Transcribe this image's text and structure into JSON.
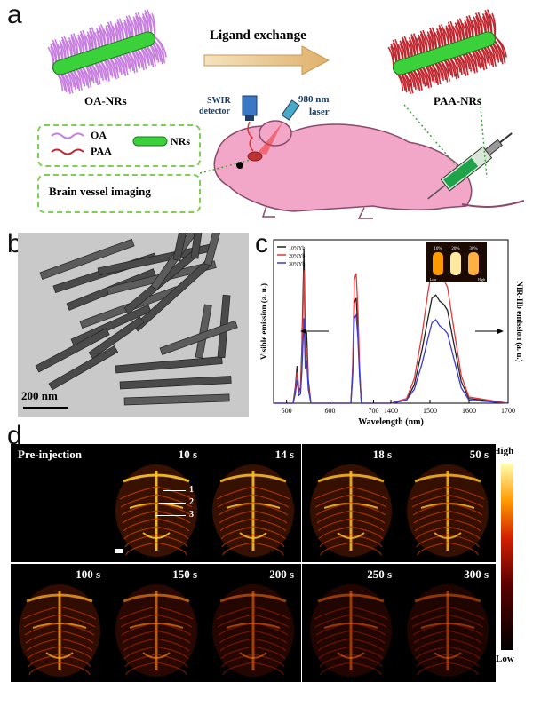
{
  "panel_a": {
    "letter": "a",
    "ligand_exchange": "Ligand exchange",
    "oa_nrs": "OA-NRs",
    "paa_nrs": "PAA-NRs",
    "swir_detector_line1": "SWIR",
    "swir_detector_line2": "detector",
    "laser_line1": "980 nm",
    "laser_line2": "laser",
    "legend_oa": "OA",
    "legend_paa": "PAA",
    "legend_nrs": "NRs",
    "brain_vessel": "Brain vessel imaging",
    "colors": {
      "oa": "#c77de0",
      "paa": "#c0262e",
      "nrs": "#3bd13b",
      "mouse": "#f2a6c8"
    }
  },
  "panel_b": {
    "letter": "b",
    "scale": "200 nm"
  },
  "panel_c": {
    "letter": "c",
    "ylabel_left": "Visible emission (a. u.)",
    "ylabel_right": "NIR-IIb emission (a. u.)",
    "xlabel": "Wavelength (nm)",
    "inset_labels": [
      "10%",
      "20%",
      "30%"
    ],
    "inset_low": "Low",
    "inset_high": "High"
  },
  "chart_data": {
    "type": "line",
    "xlabel": "Wavelength (nm)",
    "ylabel": "Visible emission (a. u.)",
    "ylabel_right": "NIR-IIb emission (a. u.)",
    "x_ticks_left": [
      "500",
      "600",
      "700"
    ],
    "x_ticks_right": [
      "1400",
      "1500",
      "1600",
      "1700"
    ],
    "xlim_left": [
      470,
      740
    ],
    "xlim_right": [
      1400,
      1700
    ],
    "ylim": [
      0,
      1
    ],
    "legend": "top-left",
    "series": [
      {
        "name": "10%Yb",
        "color": "#222222",
        "vis_x": [
          470,
          515,
          520,
          524,
          528,
          532,
          535,
          540,
          543,
          546,
          550,
          556,
          600,
          648,
          652,
          656,
          660,
          664,
          668,
          672,
          740
        ],
        "vis_y": [
          0.0,
          0.0,
          0.1,
          0.24,
          0.08,
          0.1,
          0.35,
          1.0,
          0.4,
          0.46,
          0.15,
          0.0,
          0.0,
          0.0,
          0.2,
          0.65,
          0.68,
          0.5,
          0.2,
          0.0,
          0.0
        ],
        "nir_x": [
          1400,
          1440,
          1460,
          1480,
          1495,
          1505,
          1515,
          1525,
          1535,
          1545,
          1560,
          1580,
          1600,
          1700
        ],
        "nir_y": [
          0.0,
          0.02,
          0.12,
          0.35,
          0.55,
          0.68,
          0.7,
          0.66,
          0.64,
          0.6,
          0.4,
          0.14,
          0.03,
          0.0
        ]
      },
      {
        "name": "20%Yb",
        "color": "#e0393b",
        "vis_x": [
          470,
          515,
          520,
          524,
          528,
          532,
          535,
          540,
          543,
          546,
          550,
          556,
          600,
          648,
          652,
          656,
          660,
          664,
          668,
          672,
          740
        ],
        "vis_y": [
          0.0,
          0.0,
          0.08,
          0.2,
          0.07,
          0.08,
          0.3,
          0.86,
          0.3,
          0.36,
          0.12,
          0.0,
          0.0,
          0.0,
          0.25,
          0.8,
          0.84,
          0.62,
          0.24,
          0.0,
          0.0
        ],
        "nir_x": [
          1400,
          1440,
          1460,
          1480,
          1495,
          1505,
          1515,
          1525,
          1535,
          1545,
          1560,
          1580,
          1600,
          1700
        ],
        "nir_y": [
          0.0,
          0.03,
          0.16,
          0.45,
          0.72,
          0.86,
          0.88,
          0.84,
          0.8,
          0.75,
          0.5,
          0.18,
          0.04,
          0.0
        ]
      },
      {
        "name": "30%Yb",
        "color": "#3b3bd1",
        "vis_x": [
          470,
          515,
          520,
          524,
          528,
          532,
          535,
          540,
          543,
          546,
          550,
          556,
          600,
          648,
          652,
          656,
          660,
          664,
          668,
          672,
          740
        ],
        "vis_y": [
          0.0,
          0.0,
          0.06,
          0.15,
          0.05,
          0.06,
          0.2,
          0.55,
          0.22,
          0.28,
          0.09,
          0.0,
          0.0,
          0.0,
          0.18,
          0.55,
          0.57,
          0.43,
          0.17,
          0.0,
          0.0
        ],
        "nir_x": [
          1400,
          1440,
          1460,
          1480,
          1495,
          1505,
          1515,
          1525,
          1535,
          1545,
          1560,
          1580,
          1600,
          1700
        ],
        "nir_y": [
          0.0,
          0.02,
          0.09,
          0.26,
          0.42,
          0.52,
          0.54,
          0.5,
          0.48,
          0.45,
          0.3,
          0.1,
          0.02,
          0.0
        ]
      }
    ]
  },
  "panel_d": {
    "letter": "d",
    "times": [
      "Pre-injection",
      "10 s",
      "14 s",
      "18 s",
      "50 s",
      "100 s",
      "150 s",
      "200 s",
      "250 s",
      "300 s"
    ],
    "intensity": [
      0.0,
      1.0,
      0.95,
      0.92,
      0.9,
      0.78,
      0.55,
      0.38,
      0.32,
      0.28
    ],
    "markers": [
      "1",
      "2",
      "3"
    ],
    "colorbar_high": "High",
    "colorbar_low": "Low"
  }
}
